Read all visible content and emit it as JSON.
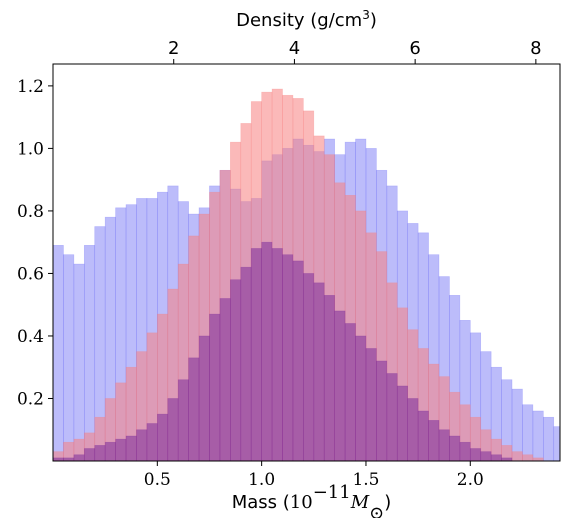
{
  "chart_data": {
    "type": "bar",
    "title": "",
    "xlabel": {
      "prefix": "Mass (",
      "base": "10",
      "exponent": "−11",
      "unit_main": "M",
      "unit_sub": "⊙",
      "suffix": ")"
    },
    "top_xlabel": {
      "main": "Density (g/cm",
      "sup": "3",
      "end": ")"
    },
    "ylabel": "",
    "xlim": [
      0.0,
      2.43
    ],
    "ylim": [
      0.0,
      1.27
    ],
    "top_xlim": [
      0.0,
      8.4
    ],
    "bin_width": 0.05,
    "x_ticks": [
      0.5,
      1.0,
      1.5,
      2.0
    ],
    "x_tick_labels": [
      "0.5",
      "1.0",
      "1.5",
      "2.0"
    ],
    "y_ticks": [
      0.2,
      0.4,
      0.6,
      0.8,
      1.0,
      1.2
    ],
    "y_tick_labels": [
      "0.2",
      "0.4",
      "0.6",
      "0.8",
      "1.0",
      "1.2"
    ],
    "top_ticks": [
      2,
      4,
      6,
      8
    ],
    "top_tick_labels": [
      "2",
      "4",
      "6",
      "8"
    ],
    "colors": {
      "blue": "#6a6af5",
      "red": "#f77f7f",
      "purple_dark": "#7a2a9a"
    },
    "series": [
      {
        "id": "blue-wide",
        "color": "#6a6af5",
        "opacity": 0.45,
        "bins_start": 0.0,
        "values": [
          0.69,
          0.66,
          0.63,
          0.69,
          0.75,
          0.78,
          0.81,
          0.82,
          0.84,
          0.84,
          0.86,
          0.88,
          0.83,
          0.79,
          0.81,
          0.88,
          0.93,
          0.87,
          0.83,
          0.84,
          0.96,
          0.98,
          1.0,
          1.03,
          1.01,
          0.99,
          1.03,
          0.98,
          1.02,
          1.03,
          1.0,
          0.93,
          0.88,
          0.8,
          0.76,
          0.73,
          0.66,
          0.59,
          0.53,
          0.45,
          0.41,
          0.35,
          0.3,
          0.26,
          0.23,
          0.18,
          0.16,
          0.14,
          0.11,
          0.09,
          0.07,
          0.05,
          0.04,
          0.03,
          0.02,
          0.015,
          0.01,
          0.005,
          0.005
        ]
      },
      {
        "id": "red-peaked",
        "color": "#f77f7f",
        "opacity": 0.55,
        "bins_start": 0.0,
        "values": [
          0.03,
          0.06,
          0.07,
          0.09,
          0.14,
          0.2,
          0.25,
          0.3,
          0.35,
          0.41,
          0.47,
          0.55,
          0.63,
          0.72,
          0.79,
          0.86,
          0.93,
          1.02,
          1.08,
          1.15,
          1.18,
          1.19,
          1.17,
          1.16,
          1.12,
          1.04,
          0.98,
          0.89,
          0.85,
          0.8,
          0.73,
          0.67,
          0.57,
          0.49,
          0.42,
          0.36,
          0.31,
          0.27,
          0.22,
          0.18,
          0.14,
          0.1,
          0.07,
          0.05,
          0.03,
          0.02,
          0.01
        ]
      },
      {
        "id": "purple-narrow",
        "color": "#7a2a9a",
        "opacity": 0.55,
        "bins_start": 0.0,
        "values": [
          0.01,
          0.01,
          0.02,
          0.04,
          0.05,
          0.06,
          0.07,
          0.08,
          0.1,
          0.12,
          0.15,
          0.2,
          0.26,
          0.33,
          0.4,
          0.47,
          0.52,
          0.58,
          0.62,
          0.68,
          0.7,
          0.68,
          0.66,
          0.64,
          0.6,
          0.57,
          0.53,
          0.48,
          0.44,
          0.4,
          0.36,
          0.32,
          0.28,
          0.24,
          0.2,
          0.16,
          0.13,
          0.1,
          0.08,
          0.06,
          0.04,
          0.03,
          0.02,
          0.01
        ]
      }
    ]
  }
}
